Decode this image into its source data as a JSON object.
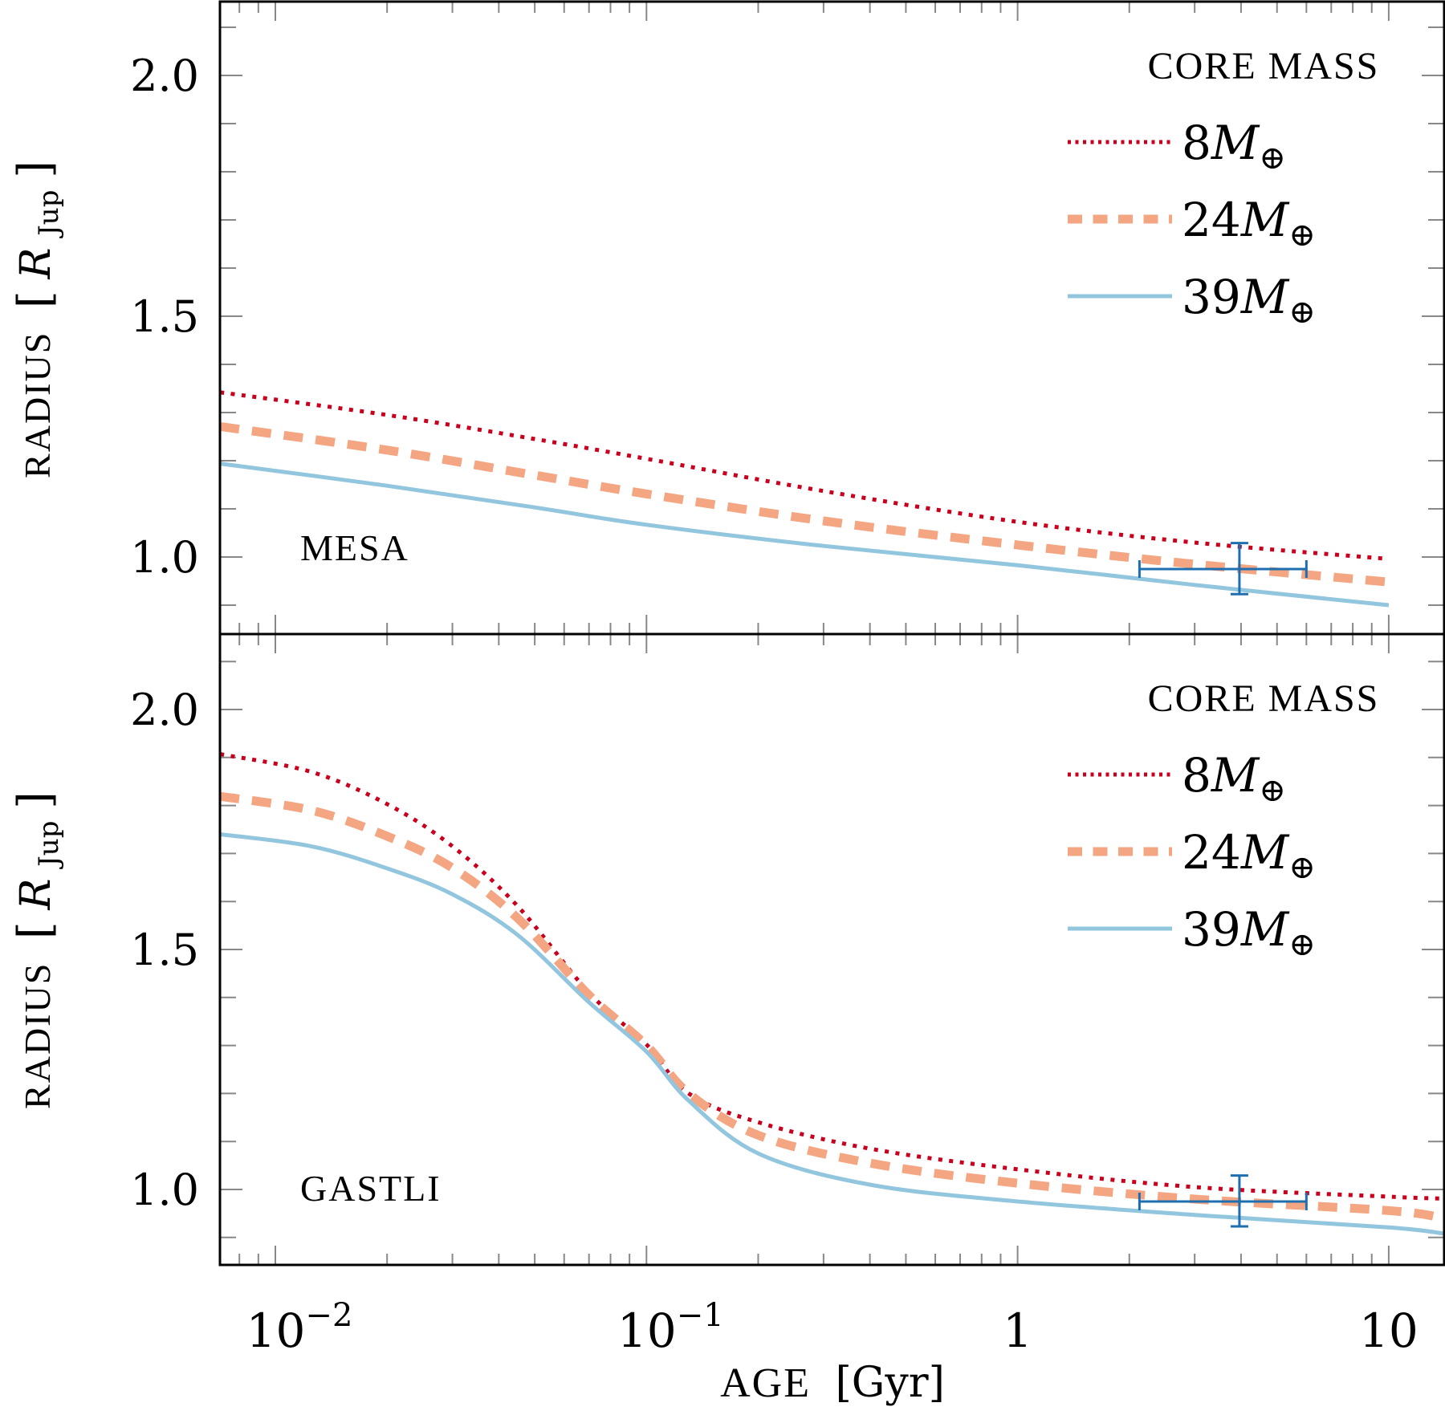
{
  "figure": {
    "x_axis_label_main": "AGE",
    "x_axis_label_unit": "[Gyr]",
    "y_axis_label_main": "RADIUS",
    "y_axis_label_unit_open": "[",
    "y_axis_label_symbol": "R",
    "y_axis_label_subscript": "Jup",
    "y_axis_label_unit_close": "]",
    "legend_title": "CORE MASS",
    "earth_mass_symbol": "M",
    "earth_subscript": "⊕",
    "colors": {
      "8": "#c8001e",
      "24": "#f4a582",
      "39": "#92c5de",
      "errorbar": "#1f6fb0",
      "axis": "#000000",
      "tick": "#888888"
    }
  },
  "chart_data": [
    {
      "type": "line",
      "panel": "top",
      "title": "MESA",
      "xlabel": "AGE [Gyr]",
      "ylabel": "RADIUS [R_Jup]",
      "xscale": "log",
      "xlim": [
        0.0071,
        14.1
      ],
      "ylim": [
        0.84,
        2.154
      ],
      "x_ticks": [
        {
          "value": 0.01,
          "label_base": "10",
          "label_exp": "−2"
        },
        {
          "value": 0.1,
          "label_base": "10",
          "label_exp": "−1"
        },
        {
          "value": 1,
          "label_base": "1",
          "label_exp": ""
        },
        {
          "value": 10,
          "label_base": "10",
          "label_exp": ""
        }
      ],
      "y_ticks": [
        {
          "value": 2.0,
          "label": "2.0"
        },
        {
          "value": 1.5,
          "label": "1.5"
        },
        {
          "value": 1.0,
          "label": "1.0"
        }
      ],
      "y_minor_step": 0.1,
      "legend": {
        "title": "CORE MASS",
        "placement": "top-right"
      },
      "series": [
        {
          "name": "8M⊕",
          "mass": "8",
          "style": "dotted",
          "x": [
            0.0071,
            0.02,
            0.05,
            0.1,
            0.3,
            1,
            3,
            10
          ],
          "y": [
            1.342,
            1.295,
            1.245,
            1.204,
            1.137,
            1.073,
            1.03,
            0.996
          ]
        },
        {
          "name": "24M⊕",
          "mass": "24",
          "style": "dashed",
          "x": [
            0.0071,
            0.02,
            0.05,
            0.1,
            0.3,
            1,
            3,
            10
          ],
          "y": [
            1.271,
            1.222,
            1.17,
            1.131,
            1.075,
            1.025,
            0.985,
            0.948
          ]
        },
        {
          "name": "39M⊕",
          "mass": "39",
          "style": "solid",
          "x": [
            0.0071,
            0.02,
            0.05,
            0.1,
            0.3,
            1,
            3,
            10
          ],
          "y": [
            1.194,
            1.148,
            1.103,
            1.067,
            1.023,
            0.983,
            0.942,
            0.9
          ]
        }
      ],
      "errorbar": {
        "x": 3.96,
        "y": 0.975,
        "xmin": 2.13,
        "xmax": 6.0,
        "ymin": 0.923,
        "ymax": 1.029
      }
    },
    {
      "type": "line",
      "panel": "bottom",
      "title": "GASTLI",
      "xlabel": "AGE [Gyr]",
      "ylabel": "RADIUS [R_Jup]",
      "xscale": "log",
      "xlim": [
        0.0071,
        14.1
      ],
      "ylim": [
        0.84,
        2.16
      ],
      "x_ticks": [
        {
          "value": 0.01,
          "label_base": "10",
          "label_exp": "−2"
        },
        {
          "value": 0.1,
          "label_base": "10",
          "label_exp": "−1"
        },
        {
          "value": 1,
          "label_base": "1",
          "label_exp": ""
        },
        {
          "value": 10,
          "label_base": "10",
          "label_exp": ""
        }
      ],
      "y_ticks": [
        {
          "value": 2.0,
          "label": "2.0"
        },
        {
          "value": 1.5,
          "label": "1.5"
        },
        {
          "value": 1.0,
          "label": "1.0"
        }
      ],
      "y_minor_step": 0.1,
      "legend": {
        "title": "CORE MASS",
        "placement": "top-right"
      },
      "series": [
        {
          "name": "8M⊕",
          "mass": "8",
          "style": "dotted",
          "x": [
            0.0071,
            0.0125,
            0.02,
            0.03,
            0.045,
            0.07,
            0.1,
            0.13,
            0.2,
            0.4,
            1,
            3,
            10,
            14.1
          ],
          "y": [
            1.907,
            1.87,
            1.803,
            1.715,
            1.59,
            1.41,
            1.302,
            1.2,
            1.14,
            1.085,
            1.042,
            1.005,
            0.985,
            0.981
          ]
        },
        {
          "name": "24M⊕",
          "mass": "24",
          "style": "dashed",
          "x": [
            0.0071,
            0.0125,
            0.02,
            0.03,
            0.045,
            0.07,
            0.1,
            0.13,
            0.2,
            0.4,
            1,
            3,
            10,
            14.1
          ],
          "y": [
            1.819,
            1.79,
            1.736,
            1.67,
            1.565,
            1.405,
            1.3,
            1.2,
            1.113,
            1.055,
            1.013,
            0.98,
            0.956,
            0.94
          ]
        },
        {
          "name": "39M⊕",
          "mass": "39",
          "style": "solid",
          "x": [
            0.0071,
            0.0125,
            0.02,
            0.03,
            0.045,
            0.07,
            0.1,
            0.13,
            0.2,
            0.4,
            1,
            3,
            10,
            14.1
          ],
          "y": [
            1.74,
            1.715,
            1.669,
            1.615,
            1.53,
            1.39,
            1.287,
            1.185,
            1.075,
            1.01,
            0.975,
            0.947,
            0.921,
            0.908
          ]
        }
      ],
      "errorbar": {
        "x": 3.96,
        "y": 0.975,
        "xmin": 2.13,
        "xmax": 6.0,
        "ymin": 0.923,
        "ymax": 1.029
      }
    }
  ]
}
